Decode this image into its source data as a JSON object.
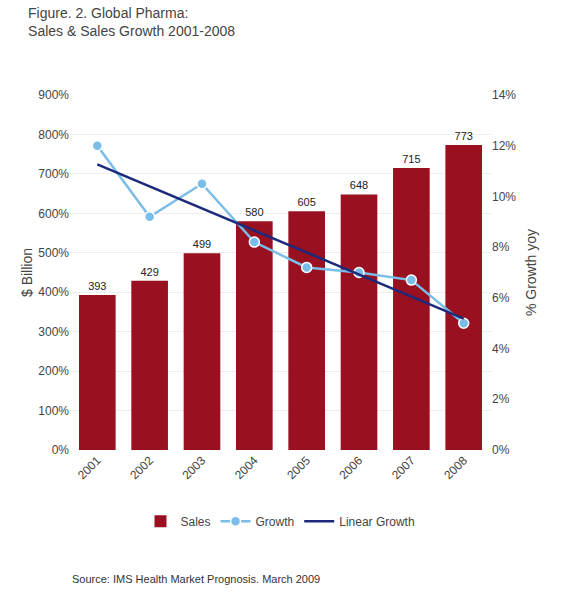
{
  "chart_data": {
    "type": "bar",
    "title": "Figure. 2. Global Pharma:\nSales & Sales Growth 2001-2008",
    "ylabel": "$ Billion",
    "y2label": "% Growth yoy",
    "annotations": [
      "Source: IMS Health Market Prognosis. March 2009"
    ],
    "categories": [
      "2001",
      "2002",
      "2003",
      "2004",
      "2005",
      "2006",
      "2007",
      "2008"
    ],
    "series": [
      {
        "name": "Sales",
        "type": "bar",
        "color": "#991020",
        "values": [
          393,
          429,
          499,
          580,
          605,
          648,
          715,
          773
        ]
      },
      {
        "name": "Growth",
        "type": "line",
        "axis": "y2",
        "color": "#7abde8",
        "marker": "circle",
        "line_style": "solid",
        "values": [
          12.0,
          9.2,
          10.5,
          8.2,
          7.2,
          7.0,
          6.7,
          5.0
        ]
      },
      {
        "name": "Linear Growth",
        "type": "line",
        "axis": "y2",
        "color": "#1c2a7c",
        "line_style": "solid",
        "values": [
          11.2666666667,
          10.3976190476,
          9.5285714286,
          8.6595238095,
          7.7904761905,
          6.9214285714,
          6.0523809524,
          5.1833333333
        ]
      }
    ],
    "ylim": [
      0,
      900
    ],
    "yticks": [
      {
        "value": 0,
        "label": "0%"
      },
      {
        "value": 100,
        "label": "100%"
      },
      {
        "value": 200,
        "label": "200%"
      },
      {
        "value": 300,
        "label": "300%"
      },
      {
        "value": 400,
        "label": "400%"
      },
      {
        "value": 500,
        "label": "500%"
      },
      {
        "value": 600,
        "label": "600%"
      },
      {
        "value": 700,
        "label": "700%"
      },
      {
        "value": 800,
        "label": "800%"
      },
      {
        "value": 900,
        "label": "900%"
      }
    ],
    "y2lim": [
      0,
      14
    ],
    "y2ticks": [
      {
        "value": 0,
        "label": "0%"
      },
      {
        "value": 2,
        "label": "2%"
      },
      {
        "value": 4,
        "label": "4%"
      },
      {
        "value": 6,
        "label": "6%"
      },
      {
        "value": 8,
        "label": "8%"
      },
      {
        "value": 10,
        "label": "10%"
      },
      {
        "value": 12,
        "label": "12%"
      },
      {
        "value": 14,
        "label": "14%"
      }
    ],
    "grid": true,
    "data_labels": true,
    "legend": "bottom"
  }
}
